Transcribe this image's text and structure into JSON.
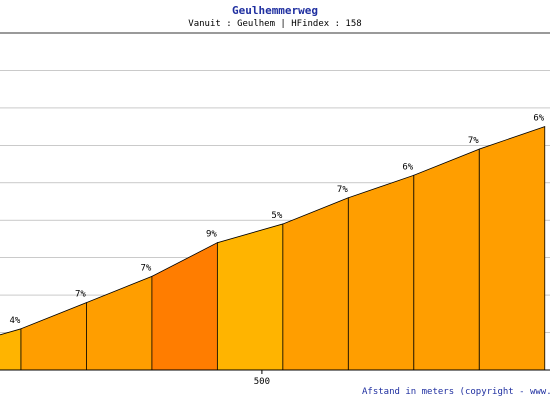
{
  "chart_data": {
    "type": "area",
    "title": "Geulhemmerweg",
    "subtitle": "Vanuit : Geulhem | HFindex : 158",
    "footer": "Afstand in meters (copyright - www.hard",
    "xlabel": "Afstand in meters",
    "ylabel": "",
    "x_ticks": [
      500
    ],
    "xlim": [
      0,
      1050
    ],
    "ylim": [
      0,
      90
    ],
    "grid": "horizontal",
    "segment_length_m": 100,
    "segments": [
      {
        "x_start": -60,
        "x_end": 40,
        "grade": "4%",
        "grade_value": 4,
        "elevation_end": 11
      },
      {
        "x_start": 40,
        "x_end": 165,
        "grade": "7%",
        "grade_value": 7,
        "elevation_end": 18
      },
      {
        "x_start": 165,
        "x_end": 290,
        "grade": "7%",
        "grade_value": 7,
        "elevation_end": 25
      },
      {
        "x_start": 290,
        "x_end": 415,
        "grade": "9%",
        "grade_value": 9,
        "elevation_end": 34
      },
      {
        "x_start": 415,
        "x_end": 540,
        "grade": "5%",
        "grade_value": 5,
        "elevation_end": 39
      },
      {
        "x_start": 540,
        "x_end": 665,
        "grade": "7%",
        "grade_value": 7,
        "elevation_end": 46
      },
      {
        "x_start": 665,
        "x_end": 790,
        "grade": "6%",
        "grade_value": 6,
        "elevation_end": 52
      },
      {
        "x_start": 790,
        "x_end": 915,
        "grade": "7%",
        "grade_value": 7,
        "elevation_end": 59
      },
      {
        "x_start": 915,
        "x_end": 1040,
        "grade": "6%",
        "grade_value": 6,
        "elevation_end": 65
      }
    ],
    "start_elevation": 7,
    "color_by_grade": {
      "4": "#ffb400",
      "5": "#ffb400",
      "6": "#ff9e00",
      "7": "#ff9e00",
      "9": "#ff7d00"
    }
  }
}
